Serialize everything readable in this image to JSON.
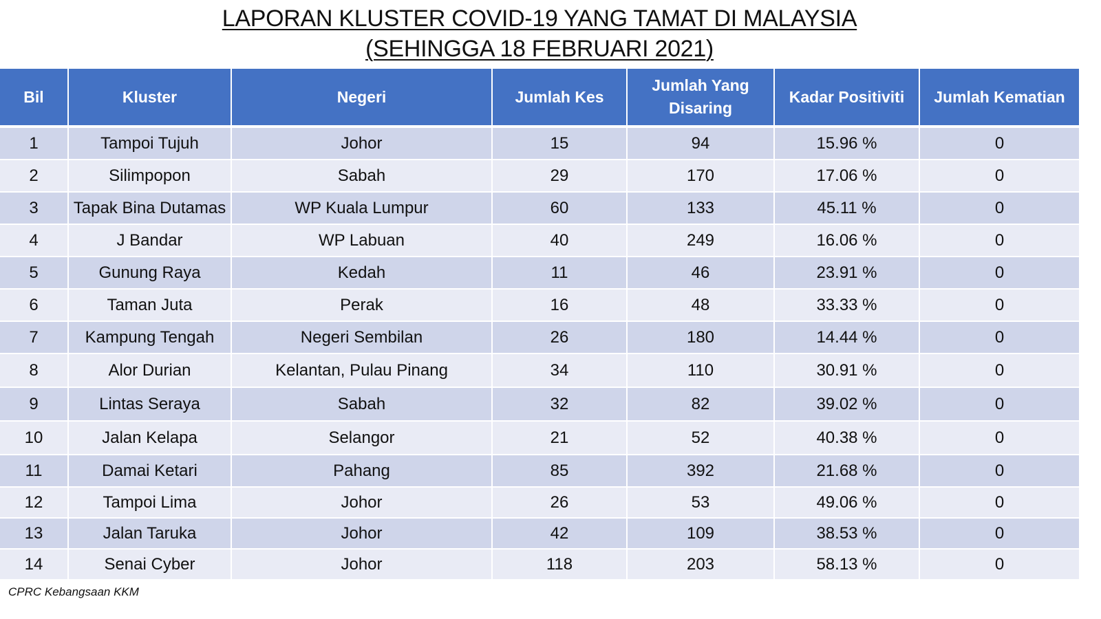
{
  "title": {
    "line1": "LAPORAN KLUSTER COVID-19 YANG TAMAT DI MALAYSIA",
    "line2": "(SEHINGGA  18 FEBRUARI 2021)"
  },
  "table": {
    "headers": [
      "Bil",
      "Kluster",
      "Negeri",
      "Jumlah Kes",
      "Jumlah Yang Disaring",
      "Kadar Positiviti",
      "Jumlah Kematian"
    ],
    "rows": [
      [
        "1",
        "Tampoi Tujuh",
        "Johor",
        "15",
        "94",
        "15.96 %",
        "0"
      ],
      [
        "2",
        "Silimpopon",
        "Sabah",
        "29",
        "170",
        "17.06 %",
        "0"
      ],
      [
        "3",
        "Tapak Bina Dutamas",
        "WP Kuala Lumpur",
        "60",
        "133",
        "45.11 %",
        "0"
      ],
      [
        "4",
        "J Bandar",
        "WP Labuan",
        "40",
        "249",
        "16.06 %",
        "0"
      ],
      [
        "5",
        "Gunung Raya",
        "Kedah",
        "11",
        "46",
        "23.91 %",
        "0"
      ],
      [
        "6",
        "Taman Juta",
        "Perak",
        "16",
        "48",
        "33.33 %",
        "0"
      ],
      [
        "7",
        "Kampung Tengah",
        "Negeri Sembilan",
        "26",
        "180",
        "14.44 %",
        "0"
      ],
      [
        "8",
        "Alor Durian",
        "Kelantan, Pulau Pinang",
        "34",
        "110",
        "30.91 %",
        "0"
      ],
      [
        "9",
        "Lintas Seraya",
        "Sabah",
        "32",
        "82",
        "39.02 %",
        "0"
      ],
      [
        "10",
        "Jalan Kelapa",
        "Selangor",
        "21",
        "52",
        "40.38 %",
        "0"
      ],
      [
        "11",
        "Damai Ketari",
        "Pahang",
        "85",
        "392",
        "21.68 %",
        "0"
      ],
      [
        "12",
        "Tampoi Lima",
        "Johor",
        "26",
        "53",
        "49.06 %",
        "0"
      ],
      [
        "13",
        "Jalan Taruka",
        "Johor",
        "42",
        "109",
        "38.53 %",
        "0"
      ],
      [
        "14",
        "Senai Cyber",
        "Johor",
        "118",
        "203",
        "58.13 %",
        "0"
      ]
    ]
  },
  "footer": "CPRC Kebangsaan KKM",
  "colors": {
    "header_bg": "#4472c4",
    "row_dark": "#cfd5ea",
    "row_light": "#e9ebf5"
  }
}
